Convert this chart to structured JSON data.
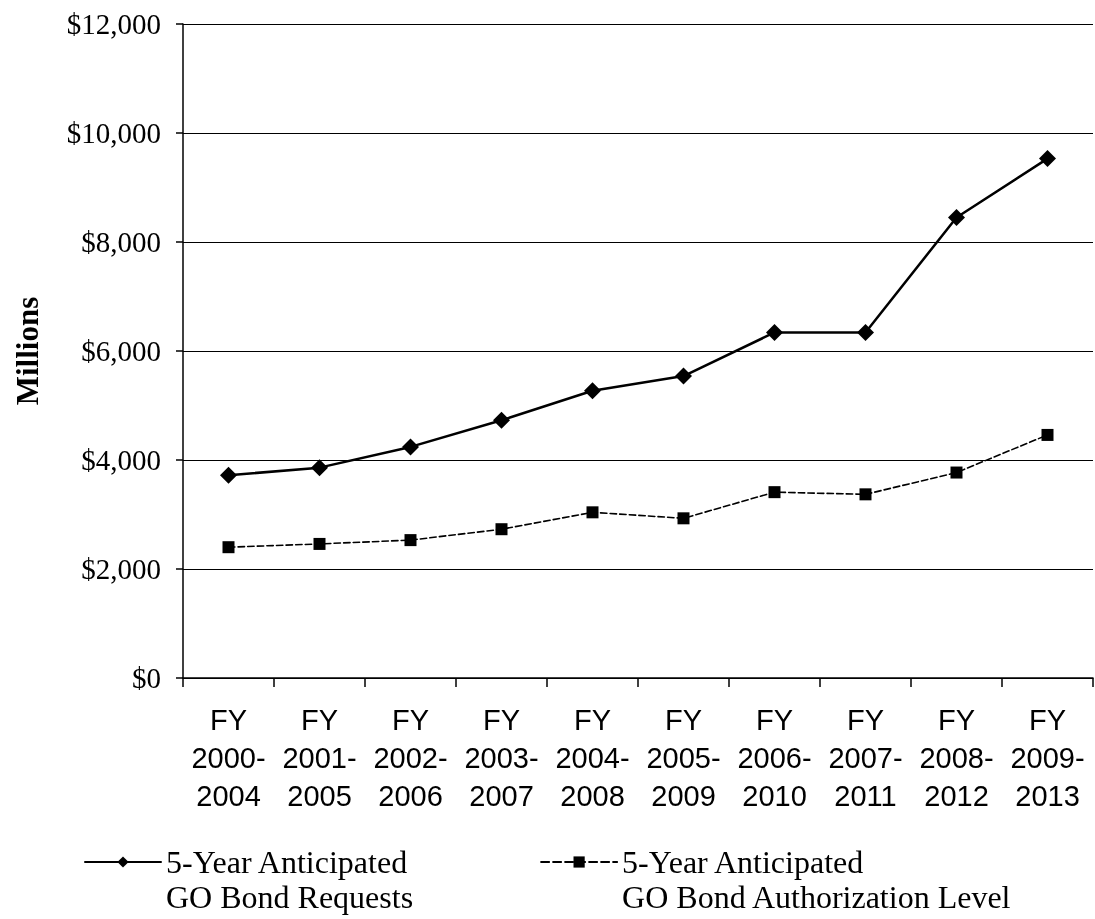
{
  "chart_data": {
    "type": "line",
    "ylabel": "Millions",
    "categories": [
      "FY 2000-2004",
      "FY 2001-2005",
      "FY 2002-2006",
      "FY 2003-2007",
      "FY 2004-2008",
      "FY 2005-2009",
      "FY 2006-2010",
      "FY 2007-2011",
      "FY 2008-2012",
      "FY 2009-2013"
    ],
    "series": [
      {
        "name": "5-Year Anticipated GO Bond Requests",
        "color": "#000000",
        "marker": "diamond",
        "line_style": "solid",
        "values": [
          3720,
          3860,
          4240,
          4730,
          5270,
          5540,
          6340,
          6340,
          8450,
          9530
        ]
      },
      {
        "name": "5-Year Anticipated GO Bond Authorization Level",
        "color": "#000000",
        "marker": "square",
        "line_style": "dashed",
        "values": [
          2400,
          2460,
          2530,
          2730,
          3040,
          2930,
          3410,
          3370,
          3770,
          4460
        ]
      }
    ],
    "ylim": [
      0,
      12000
    ],
    "yticks": [
      {
        "value": 0,
        "label": "$0"
      },
      {
        "value": 2000,
        "label": "$2,000"
      },
      {
        "value": 4000,
        "label": "$4,000"
      },
      {
        "value": 6000,
        "label": "$6,000"
      },
      {
        "value": 8000,
        "label": "$8,000"
      },
      {
        "value": 10000,
        "label": "$10,000"
      },
      {
        "value": 12000,
        "label": "$12,000"
      }
    ],
    "grid": "y",
    "legend": "bottom"
  }
}
